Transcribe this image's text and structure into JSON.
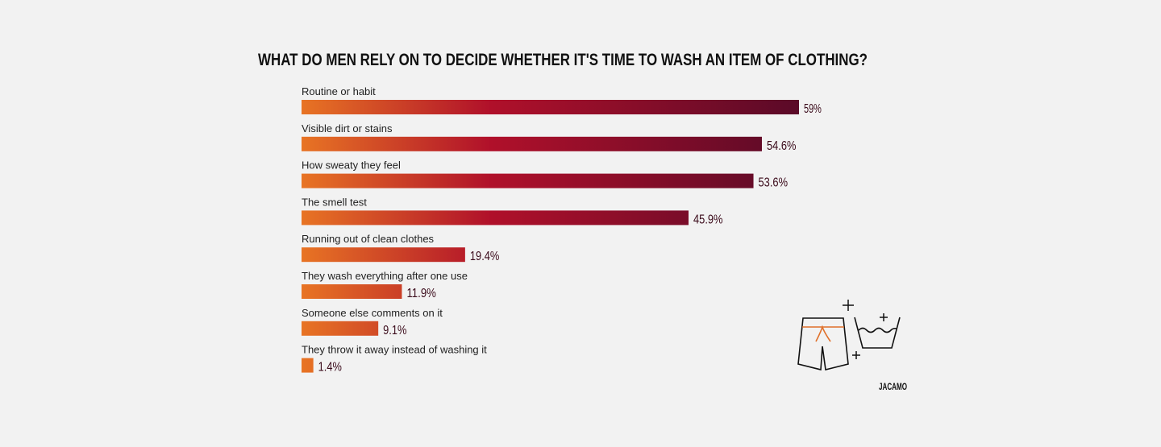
{
  "chart_data": {
    "type": "bar",
    "orientation": "horizontal",
    "title": "WHAT DO MEN RELY ON TO DECIDE WHETHER IT'S TIME TO WASH AN ITEM OF CLOTHING?",
    "categories": [
      "Routine or habit",
      "Visible dirt or stains",
      "How sweaty they feel",
      "The smell test",
      "Running out of clean clothes",
      "They wash everything after one use",
      "Someone else comments on it",
      "They throw it away instead of washing it"
    ],
    "values": [
      59,
      54.6,
      53.6,
      45.9,
      19.4,
      11.9,
      9.1,
      1.4
    ],
    "value_labels": [
      "59%",
      "54.6%",
      "53.6%",
      "45.9%",
      "19.4%",
      "11.9%",
      "9.1%",
      "1.4%"
    ],
    "unit": "%",
    "xlim": [
      0,
      59
    ],
    "grid": false,
    "gradient_colors": [
      "#e87424",
      "#b0102a",
      "#5a0a28"
    ],
    "label_color": "#3a0a1a",
    "accent_icon_color": "#e0702a"
  },
  "brand": "JACAMO",
  "icons": [
    "shorts-icon",
    "wash-basin-icon",
    "plus-icon"
  ]
}
